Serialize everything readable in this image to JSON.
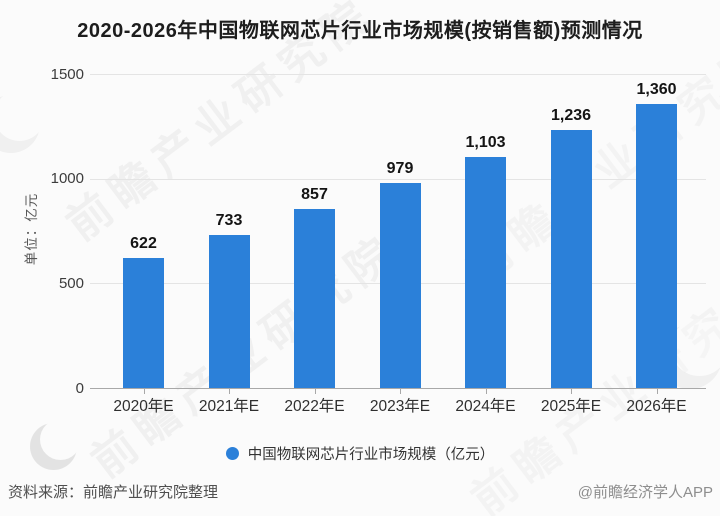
{
  "title": "2020-2026年中国物联网芯片行业市场规模(按销售额)预测情况",
  "chart_data": {
    "type": "bar",
    "categories": [
      "2020年E",
      "2021年E",
      "2022年E",
      "2023年E",
      "2024年E",
      "2025年E",
      "2026年E"
    ],
    "values": [
      622,
      733,
      857,
      979,
      1103,
      1236,
      1360
    ],
    "value_labels": [
      "622",
      "733",
      "857",
      "979",
      "1,103",
      "1,236",
      "1,360"
    ],
    "title": "2020-2026年中国物联网芯片行业市场规模(按销售额)预测情况",
    "xlabel": "",
    "ylabel": "单位：亿元",
    "ylim": [
      0,
      1500
    ],
    "yticks": [
      0,
      500,
      1000,
      1500
    ],
    "ytick_labels": [
      "0",
      "500",
      "1000",
      "1500"
    ],
    "grid": true,
    "bar_color": "#2b80d9",
    "legend": {
      "label": "中国物联网芯片行业市场规模（亿元）",
      "position": "bottom"
    }
  },
  "footer": {
    "source": "资料来源：前瞻产业研究院整理",
    "credit": "@前瞻经济学人APP"
  },
  "watermark": {
    "text": "前瞻产业研究院",
    "logo": "qianzhan-crescent-logo"
  },
  "colors": {
    "accent": "#2b80d9",
    "grid": "#e4e4e4",
    "axis": "#a8a8a8",
    "title_text": "#1d1d1d",
    "label_text": "#3c3c3c",
    "watermark": "#9a9a9a"
  }
}
